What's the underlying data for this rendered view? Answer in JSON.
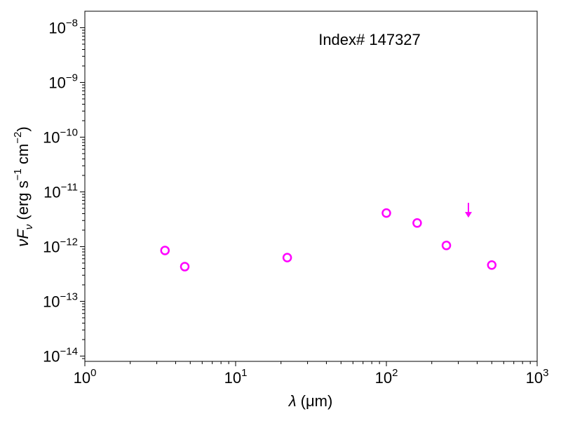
{
  "chart_data": {
    "type": "scatter",
    "title": "",
    "annotation": "Index# 147327",
    "xlabel": {
      "symbol": "λ",
      "unit": "(μm)"
    },
    "ylabel": {
      "symbol": "νF",
      "subscript": "ν",
      "unit_prefix": "(erg s",
      "s_exp": "−1",
      "unit_mid": " cm",
      "cm_exp": "−2",
      "unit_suffix": ")"
    },
    "xscale": "log",
    "yscale": "log",
    "xlim": [
      1,
      1000
    ],
    "ylim": [
      8e-15,
      2e-08
    ],
    "xticks": [
      {
        "value": 1,
        "base": "10",
        "exp": "0"
      },
      {
        "value": 10,
        "base": "10",
        "exp": "1"
      },
      {
        "value": 100,
        "base": "10",
        "exp": "2"
      },
      {
        "value": 1000,
        "base": "10",
        "exp": "3"
      }
    ],
    "yticks": [
      {
        "value": 1e-14,
        "base": "10",
        "exp": "−14"
      },
      {
        "value": 1e-13,
        "base": "10",
        "exp": "−13"
      },
      {
        "value": 1e-12,
        "base": "10",
        "exp": "−12"
      },
      {
        "value": 1e-11,
        "base": "10",
        "exp": "−11"
      },
      {
        "value": 1e-10,
        "base": "10",
        "exp": "−10"
      },
      {
        "value": 1e-09,
        "base": "10",
        "exp": "−9"
      },
      {
        "value": 1e-08,
        "base": "10",
        "exp": "−8"
      }
    ],
    "color": "#ff00ff",
    "series": [
      {
        "marker": "open-circle",
        "points": [
          {
            "x": 3.4,
            "y": 8.5e-13
          },
          {
            "x": 4.6,
            "y": 4.3e-13
          },
          {
            "x": 22,
            "y": 6.3e-13
          },
          {
            "x": 100,
            "y": 4.1e-12
          },
          {
            "x": 160,
            "y": 2.7e-12
          },
          {
            "x": 250,
            "y": 1.05e-12
          },
          {
            "x": 500,
            "y": 4.6e-13
          }
        ]
      },
      {
        "marker": "upper-limit-arrow",
        "points": [
          {
            "x": 350,
            "y": 3.6e-12
          }
        ]
      }
    ],
    "grid": false,
    "legend": "none"
  }
}
